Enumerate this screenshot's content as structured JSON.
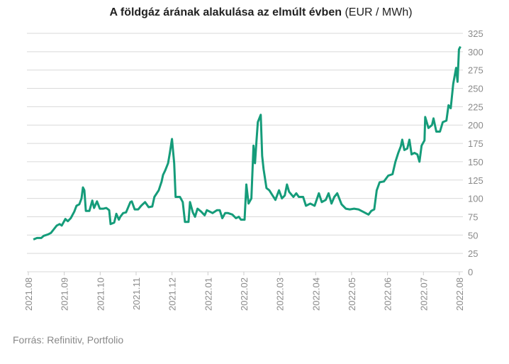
{
  "chart_data": {
    "type": "line",
    "title": "A földgáz árának alakulása az elmúlt évben",
    "subtitle": "(EUR / MWh)",
    "source": "Forrás: Refinitiv, Portfolio",
    "xlim": [
      0,
      12.1
    ],
    "xticks": [
      {
        "value": 0,
        "label": "2021.08"
      },
      {
        "value": 1,
        "label": "2021.09"
      },
      {
        "value": 2,
        "label": "2021.10"
      },
      {
        "value": 3,
        "label": "2021.11"
      },
      {
        "value": 4,
        "label": "2021.12"
      },
      {
        "value": 5,
        "label": "2022.01"
      },
      {
        "value": 6,
        "label": "2022.02"
      },
      {
        "value": 7,
        "label": "2022.03"
      },
      {
        "value": 8,
        "label": "2022.04"
      },
      {
        "value": 9,
        "label": "2022.05"
      },
      {
        "value": 10,
        "label": "2022.06"
      },
      {
        "value": 11,
        "label": "2022.07"
      },
      {
        "value": 12,
        "label": "2022.08"
      }
    ],
    "ylim": [
      0,
      325
    ],
    "yticks": [
      0,
      25,
      50,
      75,
      100,
      125,
      150,
      175,
      200,
      225,
      250,
      275,
      300,
      325
    ],
    "grid": true,
    "series": [
      {
        "color": "#159c7a",
        "x": [
          0.14,
          0.24,
          0.36,
          0.43,
          0.55,
          0.63,
          0.71,
          0.79,
          0.87,
          0.93,
          1.03,
          1.1,
          1.18,
          1.28,
          1.34,
          1.42,
          1.48,
          1.52,
          1.56,
          1.6,
          1.7,
          1.78,
          1.83,
          1.91,
          1.99,
          2.09,
          2.17,
          2.25,
          2.29,
          2.39,
          2.45,
          2.52,
          2.56,
          2.64,
          2.72,
          2.84,
          2.88,
          2.96,
          3.06,
          3.14,
          3.25,
          3.35,
          3.45,
          3.51,
          3.63,
          3.71,
          3.75,
          3.81,
          3.89,
          3.94,
          4.0,
          4.06,
          4.1,
          4.22,
          4.3,
          4.36,
          4.46,
          4.5,
          4.58,
          4.64,
          4.71,
          4.81,
          4.91,
          4.97,
          5.05,
          5.13,
          5.25,
          5.33,
          5.4,
          5.48,
          5.56,
          5.68,
          5.78,
          5.86,
          5.92,
          6.02,
          6.07,
          6.13,
          6.21,
          6.27,
          6.31,
          6.35,
          6.39,
          6.47,
          6.51,
          6.55,
          6.63,
          6.71,
          6.8,
          6.88,
          6.98,
          7.06,
          7.14,
          7.2,
          7.26,
          7.38,
          7.46,
          7.53,
          7.65,
          7.73,
          7.85,
          7.97,
          8.09,
          8.17,
          8.28,
          8.36,
          8.44,
          8.52,
          8.6,
          8.72,
          8.84,
          8.95,
          9.07,
          9.19,
          9.31,
          9.47,
          9.55,
          9.63,
          9.7,
          9.78,
          9.9,
          10.02,
          10.14,
          10.22,
          10.3,
          10.37,
          10.41,
          10.47,
          10.55,
          10.61,
          10.67,
          10.75,
          10.83,
          10.89,
          10.95,
          11.03,
          11.05,
          11.14,
          11.24,
          11.28,
          11.36,
          11.46,
          11.54,
          11.64,
          11.7,
          11.76,
          11.83,
          11.91,
          11.95,
          11.99,
          12.03
        ],
        "values": [
          44,
          46,
          46,
          49,
          51,
          53,
          58,
          63,
          65,
          63,
          72,
          69,
          73,
          82,
          90,
          92,
          100,
          115,
          111,
          83,
          83,
          97,
          87,
          96,
          86,
          86,
          87,
          84,
          65,
          67,
          79,
          71,
          75,
          80,
          81,
          95,
          96,
          85,
          85,
          90,
          95,
          88,
          89,
          102,
          111,
          123,
          132,
          138,
          148,
          162,
          181,
          148,
          102,
          102,
          95,
          68,
          68,
          95,
          81,
          75,
          86,
          82,
          77,
          84,
          82,
          80,
          84,
          84,
          73,
          80,
          80,
          78,
          73,
          75,
          71,
          71,
          119,
          93,
          100,
          172,
          148,
          177,
          204,
          214,
          158,
          140,
          114,
          111,
          104,
          98,
          111,
          100,
          104,
          119,
          109,
          102,
          107,
          102,
          102,
          90,
          93,
          90,
          107,
          95,
          98,
          107,
          93,
          102,
          107,
          92,
          86,
          85,
          86,
          85,
          82,
          78,
          83,
          85,
          111,
          122,
          123,
          131,
          133,
          150,
          162,
          171,
          180,
          166,
          168,
          180,
          160,
          162,
          160,
          150,
          172,
          179,
          211,
          196,
          200,
          209,
          191,
          191,
          204,
          206,
          227,
          223,
          256,
          278,
          259,
          303,
          307
        ]
      }
    ]
  }
}
